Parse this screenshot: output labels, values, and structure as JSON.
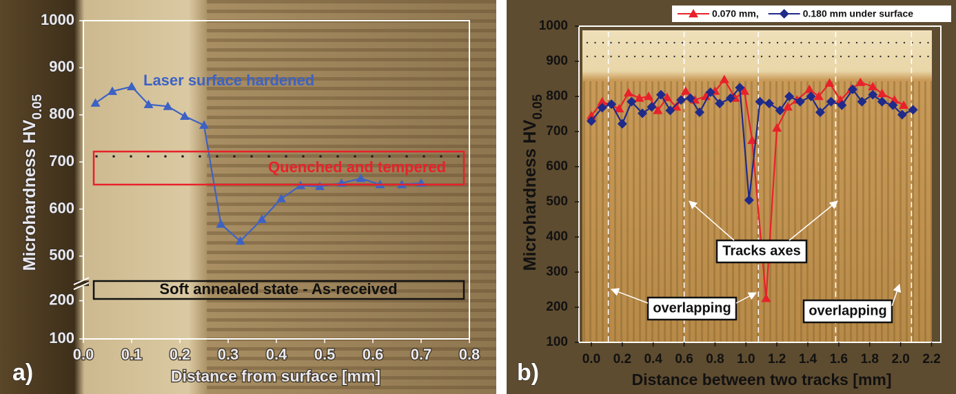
{
  "chart_data": [
    {
      "type": "line",
      "panel_label": "a)",
      "xlabel": "Distance from surface [mm]",
      "ylabel": "Microhardness HV",
      "ylabel_sub": "0.05",
      "xlim": [
        0,
        0.8
      ],
      "xticks": [
        {
          "value": 0,
          "label": "0.0"
        },
        0.1,
        0.2,
        0.3,
        0.4,
        0.5,
        0.6,
        0.7,
        0.8
      ],
      "ylim": [
        100,
        1000
      ],
      "ybreak": [
        200,
        500
      ],
      "yticks": [
        100,
        200,
        500,
        600,
        700,
        800,
        900,
        1000
      ],
      "series": [
        {
          "name": "Laser surface hardened",
          "color": "#3d62c4",
          "marker": "triangle",
          "x": [
            0.025,
            0.06,
            0.1,
            0.135,
            0.175,
            0.21,
            0.25,
            0.285,
            0.325,
            0.37,
            0.41,
            0.45,
            0.49,
            0.535,
            0.575,
            0.615,
            0.66,
            0.7
          ],
          "values": [
            825,
            850,
            860,
            822,
            818,
            797,
            778,
            568,
            532,
            578,
            622,
            650,
            648,
            655,
            665,
            652,
            652,
            655
          ]
        }
      ],
      "annotations": [
        "Quenched and tempered",
        "Soft annealed state - As-received"
      ]
    },
    {
      "type": "line",
      "panel_label": "b)",
      "xlabel": "Distance between two tracks [mm]",
      "ylabel": "Microhardness HV",
      "ylabel_sub": "0.05",
      "xlim": [
        -0.08,
        2.26
      ],
      "xticks": [
        {
          "value": 0,
          "label": "0.0"
        },
        0.2,
        0.4,
        0.6,
        0.8,
        {
          "value": 1,
          "label": "1.0"
        },
        1.2,
        1.4,
        1.6,
        1.8,
        {
          "value": 2,
          "label": "2.0"
        },
        2.2
      ],
      "ylim": [
        100,
        1000
      ],
      "yticks": [
        100,
        200,
        300,
        400,
        500,
        600,
        700,
        800,
        900,
        1000
      ],
      "legend": "top-right",
      "series": [
        {
          "name": "0.070 mm,",
          "color": "#e8212a",
          "marker": "triangle",
          "x": [
            0,
            0.07,
            0.18,
            0.24,
            0.31,
            0.37,
            0.43,
            0.49,
            0.55,
            0.61,
            0.67,
            0.74,
            0.8,
            0.86,
            0.93,
            0.99,
            1.04,
            1.13,
            1.2,
            1.27,
            1.33,
            1.41,
            1.47,
            1.54,
            1.61,
            1.68,
            1.74,
            1.82,
            1.88,
            1.96,
            2.02
          ],
          "values": [
            745,
            785,
            765,
            810,
            795,
            800,
            760,
            797,
            770,
            815,
            790,
            800,
            815,
            848,
            795,
            815,
            675,
            225,
            710,
            770,
            790,
            820,
            800,
            838,
            790,
            820,
            840,
            828,
            808,
            790,
            775
          ]
        },
        {
          "name": "0.180 mm under surface",
          "color": "#1f2a8a",
          "marker": "diamond",
          "x": [
            0,
            0.07,
            0.13,
            0.2,
            0.26,
            0.33,
            0.39,
            0.45,
            0.51,
            0.58,
            0.64,
            0.7,
            0.77,
            0.83,
            0.9,
            0.96,
            1.02,
            1.09,
            1.15,
            1.22,
            1.28,
            1.35,
            1.42,
            1.48,
            1.55,
            1.62,
            1.69,
            1.75,
            1.82,
            1.88,
            1.95,
            2.01,
            2.08
          ],
          "values": [
            730,
            768,
            778,
            722,
            785,
            752,
            770,
            805,
            760,
            790,
            795,
            755,
            812,
            780,
            795,
            825,
            505,
            785,
            780,
            760,
            800,
            785,
            800,
            755,
            785,
            775,
            820,
            785,
            805,
            785,
            775,
            748,
            762
          ]
        }
      ],
      "track_lines": [
        0.11,
        0.6,
        1.08,
        1.58,
        2.07
      ],
      "annotations": [
        "Tracks axes",
        "overlapping",
        "overlapping"
      ]
    }
  ]
}
